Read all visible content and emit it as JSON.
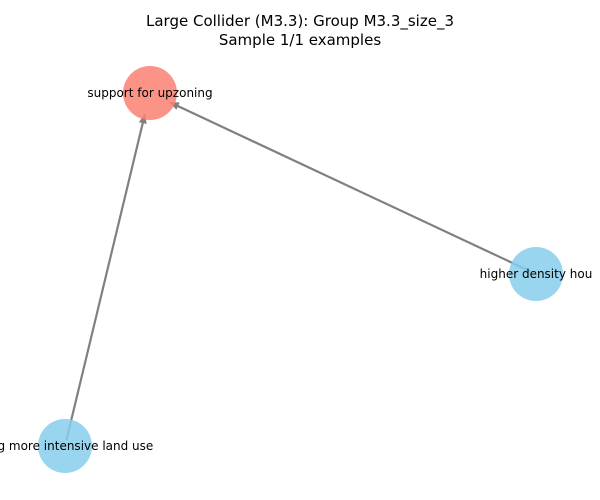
{
  "title": {
    "line1": "Large Collider (M3.3): Group M3.3_size_3",
    "line2": "Sample 1/1 examples"
  },
  "graph": {
    "nodes": [
      {
        "id": "upzoning",
        "label": "support for upzoning",
        "color": "#fa8072",
        "role": "collider"
      },
      {
        "id": "density",
        "label": "higher density hou",
        "color": "#87ceeb",
        "role": "cause"
      },
      {
        "id": "landuse",
        "label": "wing more intensive land use",
        "color": "#87ceeb",
        "role": "cause"
      }
    ],
    "edges": [
      {
        "from": "density",
        "to": "upzoning",
        "color": "#808080"
      },
      {
        "from": "landuse",
        "to": "upzoning",
        "color": "#808080"
      }
    ]
  }
}
